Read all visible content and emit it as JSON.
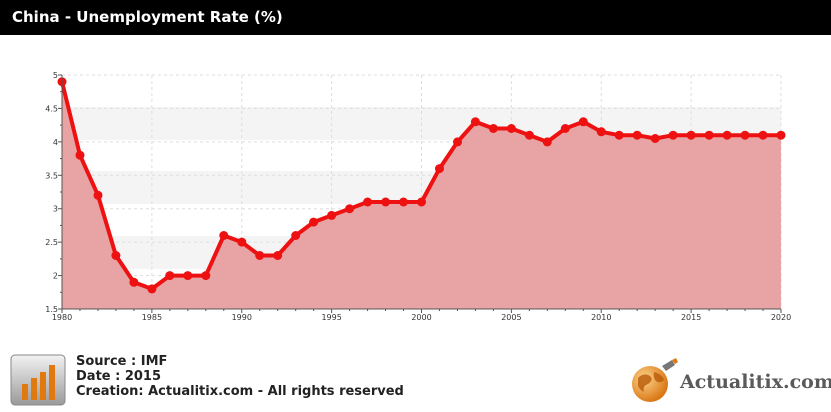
{
  "header": {
    "title": "China - Unemployment Rate (%)"
  },
  "colors": {
    "line": "#ee1111",
    "area": "#e8a4a4",
    "title_bg": "#000000"
  },
  "chart_data": {
    "type": "area",
    "title": "China - Unemployment Rate (%)",
    "xlabel": "",
    "ylabel": "",
    "xlim": [
      1980,
      2020
    ],
    "ylim": [
      1.5,
      5
    ],
    "grid": true,
    "x_ticks": [
      "1980",
      "1985",
      "1990",
      "1995",
      "2000",
      "2005",
      "2010",
      "2015",
      "2020"
    ],
    "y_ticks": [
      "1.5",
      "2",
      "2.5",
      "3",
      "3.5",
      "4",
      "4.5",
      "5"
    ],
    "series": [
      {
        "x": [
          1980,
          1981,
          1982,
          1983,
          1984,
          1985,
          1986,
          1987,
          1988,
          1989,
          1990,
          1991,
          1992,
          1993,
          1994,
          1995,
          1996,
          1997,
          1998,
          1999,
          2000,
          2001,
          2002,
          2003,
          2004,
          2005,
          2006,
          2007,
          2008,
          2009,
          2010,
          2011,
          2012,
          2013,
          2014,
          2015,
          2016,
          2017,
          2018,
          2019,
          2020
        ],
        "values": [
          4.9,
          3.8,
          3.2,
          2.3,
          1.9,
          1.8,
          2.0,
          2.0,
          2.0,
          2.6,
          2.5,
          2.3,
          2.3,
          2.6,
          2.8,
          2.9,
          3.0,
          3.1,
          3.1,
          3.1,
          3.1,
          3.6,
          4.0,
          4.3,
          4.2,
          4.2,
          4.1,
          4.0,
          4.2,
          4.3,
          4.15,
          4.1,
          4.1,
          4.05,
          4.1,
          4.1,
          4.1,
          4.1,
          4.1,
          4.1,
          4.1
        ]
      }
    ]
  },
  "footer": {
    "source": "Source : IMF",
    "date": "Date : 2015",
    "creation": "Creation: Actualitix.com - All rights reserved",
    "logo_text": "Actualitix.com"
  }
}
